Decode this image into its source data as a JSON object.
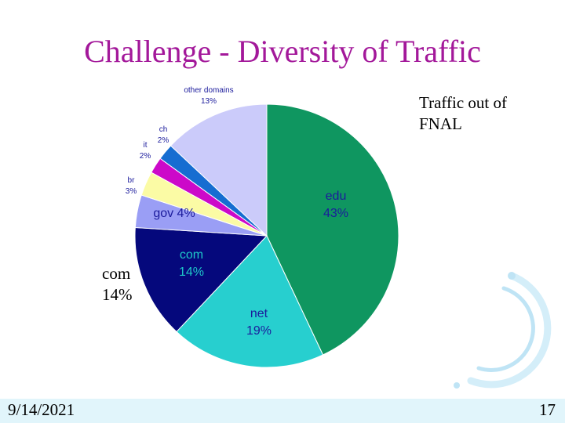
{
  "slide": {
    "title": "Challenge - Diversity of Traffic",
    "note_line1": "Traffic out of",
    "note_line2": "FNAL",
    "com_note_line1": "com",
    "com_note_line2": "14%",
    "date": "9/14/2021",
    "page_number": "17"
  },
  "chart_data": {
    "type": "pie",
    "title": "",
    "start": "12 o'clock, clockwise",
    "slices": [
      {
        "name": "edu",
        "value": 43,
        "label": "43%",
        "color": "#0f9660",
        "label_color": "#1b1b9c",
        "label_size": "large",
        "label_pos": "inside"
      },
      {
        "name": "net",
        "value": 19,
        "label": "19%",
        "color": "#27cfcf",
        "label_color": "#1b1b9c",
        "label_size": "large",
        "label_pos": "inside"
      },
      {
        "name": "com",
        "value": 14,
        "label": "14%",
        "color": "#05087c",
        "label_color": "#1ec8c8",
        "label_size": "large",
        "label_pos": "inside"
      },
      {
        "name": "gov",
        "value": 4,
        "label": "4%",
        "color": "#9a9ef5",
        "label_color": "#1b1b9c",
        "label_size": "large",
        "label_pos": "inside-inline"
      },
      {
        "name": "br",
        "value": 3,
        "label": "3%",
        "color": "#fbfba5",
        "label_color": "#1b1b9c",
        "label_size": "small",
        "label_pos": "outside"
      },
      {
        "name": "it",
        "value": 2,
        "label": "2%",
        "color": "#cc09c9",
        "label_color": "#1b1b9c",
        "label_size": "small",
        "label_pos": "outside"
      },
      {
        "name": "ch",
        "value": 2,
        "label": "2%",
        "color": "#166dd1",
        "label_color": "#1b1b9c",
        "label_size": "small",
        "label_pos": "outside"
      },
      {
        "name": "other domains",
        "value": 13,
        "label": "13%",
        "color": "#cbcbfa",
        "label_color": "#1b1b9c",
        "label_size": "small",
        "label_pos": "outside"
      }
    ]
  }
}
